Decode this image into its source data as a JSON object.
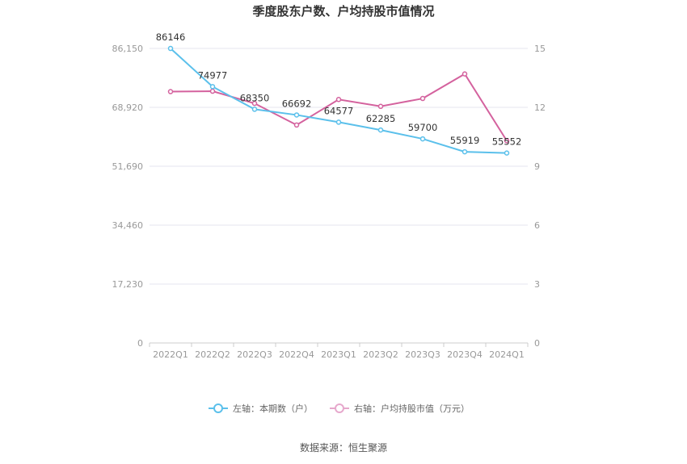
{
  "chart_data": {
    "type": "line",
    "title": "季度股东户数、户均持股市值情况",
    "categories": [
      "2022Q1",
      "2022Q2",
      "2022Q3",
      "2022Q4",
      "2023Q1",
      "2023Q2",
      "2023Q3",
      "2023Q4",
      "2024Q1"
    ],
    "left_axis": {
      "ticks": [
        "0",
        "17,230",
        "34,460",
        "51,690",
        "68,920",
        "86,150"
      ],
      "ylim": [
        0,
        86150
      ]
    },
    "right_axis": {
      "ticks": [
        "0",
        "3",
        "6",
        "9",
        "12",
        "15"
      ],
      "ylim": [
        0,
        15
      ]
    },
    "series": [
      {
        "name": "左轴：本期数（户）",
        "axis": "left",
        "color": "#5bc0eb",
        "values": [
          86146,
          74977,
          68350,
          66692,
          64577,
          62285,
          59700,
          55919,
          55552
        ],
        "labels": [
          "86146",
          "74977",
          "68350",
          "66692",
          "64577",
          "62285",
          "59700",
          "55919",
          "55552"
        ]
      },
      {
        "name": "右轴：户均持股市值（万元）",
        "axis": "right",
        "color": "#d4629e",
        "values": [
          12.8,
          12.82,
          12.2,
          11.1,
          12.4,
          12.05,
          12.45,
          13.7,
          10.3
        ]
      }
    ],
    "grid": true,
    "legend": "bottom"
  },
  "footer": {
    "source": "数据来源：恒生聚源"
  }
}
